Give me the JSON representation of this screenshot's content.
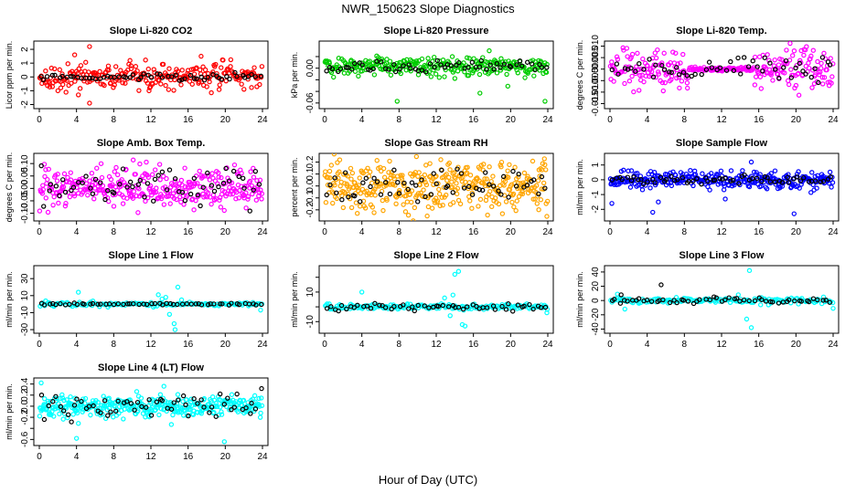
{
  "figure": {
    "title": "NWR_150623  Slope Diagnostics",
    "xlabel": "Hour of Day (UTC)"
  },
  "chart_data": [
    {
      "type": "scatter",
      "title": "Slope Li-820 CO2",
      "ylabel": "Licor ppm per min.",
      "xlim": [
        0,
        24
      ],
      "ylim": [
        -2.1,
        2.4
      ],
      "xticks": [
        0,
        4,
        8,
        12,
        16,
        20,
        24
      ],
      "xtick_labels": [
        "0",
        "4",
        "8",
        "12",
        "16",
        "20",
        "24"
      ],
      "yticks": [
        -2,
        -1,
        0,
        1,
        2
      ],
      "ytick_labels": [
        "-2",
        "-1",
        "0",
        "1",
        "2"
      ],
      "series": [
        {
          "color": "#ff0000",
          "marker": "open-circle",
          "trend": 0.02,
          "spread": 0.45,
          "points": 260,
          "outliers": [
            [
              5.4,
              2.2
            ],
            [
              5.4,
              -1.9
            ],
            [
              4.2,
              -1.3
            ],
            [
              3.8,
              1.6
            ],
            [
              17.4,
              1.5
            ],
            [
              11.8,
              -1.0
            ]
          ]
        },
        {
          "color": "#000000",
          "marker": "open-circle",
          "trend": 0.0,
          "spread": 0.12,
          "points": 60
        }
      ]
    },
    {
      "type": "scatter",
      "title": "Slope Li-820 Pressure",
      "ylabel": "kPa per min.",
      "xlim": [
        0,
        24
      ],
      "ylim": [
        -0.065,
        0.042
      ],
      "xticks": [
        0,
        4,
        8,
        12,
        16,
        20,
        24
      ],
      "xtick_labels": [
        "0",
        "4",
        "8",
        "12",
        "16",
        "20",
        "24"
      ],
      "yticks": [
        -0.06,
        -0.04,
        -0.02,
        0.0,
        0.02
      ],
      "ytick_labels": [
        "-0.06",
        "",
        "",
        "0.00",
        ""
      ],
      "series": [
        {
          "color": "#00cc00",
          "marker": "open-circle",
          "trend": 0.003,
          "spread": 0.008,
          "points": 280,
          "outliers": [
            [
              7.8,
              -0.057
            ],
            [
              16.7,
              -0.043
            ],
            [
              17.7,
              0.03
            ],
            [
              19.7,
              -0.031
            ],
            [
              23.7,
              -0.057
            ],
            [
              5.6,
              0.021
            ]
          ]
        },
        {
          "color": "#000000",
          "marker": "open-circle",
          "trend": 0.001,
          "spread": 0.005,
          "points": 60
        }
      ]
    },
    {
      "type": "scatter",
      "title": "Slope Li-820 Temp.",
      "ylabel": "degrees C per min.",
      "xlim": [
        0,
        24
      ],
      "ylim": [
        -0.016,
        0.011
      ],
      "xticks": [
        0,
        4,
        8,
        12,
        16,
        20,
        24
      ],
      "xtick_labels": [
        "0",
        "4",
        "8",
        "12",
        "16",
        "20",
        "24"
      ],
      "yticks": [
        -0.015,
        -0.01,
        -0.005,
        0.0,
        0.005,
        0.01
      ],
      "ytick_labels": [
        "-0.015",
        "-0.010",
        "-0.005",
        "0.000",
        "0.005",
        "0.010"
      ],
      "series": [
        {
          "color": "#ff00ff",
          "marker": "open-circle",
          "trend": 0.0,
          "spread": 0.0045,
          "points": 300,
          "quiet_range": [
            8.5,
            15.5
          ]
        },
        {
          "color": "#000000",
          "marker": "open-circle",
          "trend": 0.0,
          "spread": 0.0025,
          "points": 55
        }
      ]
    },
    {
      "type": "scatter",
      "title": "Slope Amb. Box Temp.",
      "ylabel": "degrees C per min.",
      "xlim": [
        0,
        24
      ],
      "ylim": [
        -0.12,
        0.13
      ],
      "xticks": [
        0,
        4,
        8,
        12,
        16,
        20,
        24
      ],
      "xtick_labels": [
        "0",
        "4",
        "8",
        "12",
        "16",
        "20",
        "24"
      ],
      "yticks": [
        -0.1,
        -0.05,
        0.0,
        0.05,
        0.1
      ],
      "ytick_labels": [
        "-0.10",
        "-0.05",
        "0.00",
        "0.05",
        "0.10"
      ],
      "series": [
        {
          "color": "#ff00ff",
          "marker": "open-circle",
          "trend": 0.005,
          "spread": 0.04,
          "points": 340
        },
        {
          "color": "#000000",
          "marker": "open-circle",
          "trend": 0.0,
          "spread": 0.04,
          "points": 60
        }
      ]
    },
    {
      "type": "scatter",
      "title": "Slope Gas Stream RH",
      "ylabel": "percent per min.",
      "xlim": [
        0,
        24
      ],
      "ylim": [
        -0.27,
        0.25
      ],
      "xticks": [
        0,
        4,
        8,
        12,
        16,
        20,
        24
      ],
      "xtick_labels": [
        "0",
        "4",
        "8",
        "12",
        "16",
        "20",
        "24"
      ],
      "yticks": [
        -0.2,
        -0.1,
        0.0,
        0.1,
        0.2
      ],
      "ytick_labels": [
        "-0.2",
        "-0.1",
        "0.0",
        "0.1",
        "0.2"
      ],
      "series": [
        {
          "color": "#ffa500",
          "marker": "open-circle",
          "trend": 0.0,
          "spread": 0.1,
          "points": 380
        },
        {
          "color": "#000000",
          "marker": "open-circle",
          "trend": 0.0,
          "spread": 0.07,
          "points": 60
        }
      ]
    },
    {
      "type": "scatter",
      "title": "Slope Sample Flow",
      "ylabel": "ml/min per min.",
      "xlim": [
        0,
        24
      ],
      "ylim": [
        -2.6,
        1.6
      ],
      "xticks": [
        0,
        4,
        8,
        12,
        16,
        20,
        24
      ],
      "xtick_labels": [
        "0",
        "4",
        "8",
        "12",
        "16",
        "20",
        "24"
      ],
      "yticks": [
        -2,
        -1,
        0,
        1
      ],
      "ytick_labels": [
        "-2",
        "-1",
        "0",
        "1"
      ],
      "series": [
        {
          "color": "#0000ff",
          "marker": "open-circle",
          "trend": 0.0,
          "spread": 0.28,
          "points": 320,
          "outliers": [
            [
              0.2,
              -1.6
            ],
            [
              4.6,
              -2.2
            ],
            [
              19.8,
              -2.3
            ],
            [
              15.2,
              1.2
            ],
            [
              5.2,
              -1.5
            ],
            [
              12.4,
              -1.3
            ]
          ]
        },
        {
          "color": "#000000",
          "marker": "open-circle",
          "trend": 0.0,
          "spread": 0.12,
          "points": 60
        }
      ]
    },
    {
      "type": "scatter",
      "title": "Slope Line 1 Flow",
      "ylabel": "ml/min per min.",
      "xlim": [
        0,
        24
      ],
      "ylim": [
        -31,
        42
      ],
      "xticks": [
        0,
        4,
        8,
        12,
        16,
        20,
        24
      ],
      "xtick_labels": [
        "0",
        "4",
        "8",
        "12",
        "16",
        "20",
        "24"
      ],
      "yticks": [
        -30,
        -10,
        10,
        30
      ],
      "ytick_labels": [
        "-30",
        "-10",
        "10",
        "30"
      ],
      "series": [
        {
          "color": "#00ffff",
          "marker": "open-circle",
          "trend": 0.0,
          "spread": 1.2,
          "points": 150,
          "outliers": [
            [
              4.2,
              14
            ],
            [
              12.8,
              11
            ],
            [
              13.6,
              8
            ],
            [
              14.0,
              -12
            ],
            [
              14.5,
              -23
            ],
            [
              14.6,
              -30
            ],
            [
              14.9,
              20
            ],
            [
              13.2,
              6
            ],
            [
              23.8,
              -7
            ],
            [
              15.3,
              5
            ]
          ]
        },
        {
          "color": "#000000",
          "marker": "open-circle",
          "trend": 0.0,
          "spread": 0.5,
          "points": 55
        }
      ]
    },
    {
      "type": "scatter",
      "title": "Slope Line 2 Flow",
      "ylabel": "ml/min per min.",
      "xlim": [
        0,
        24
      ],
      "ylim": [
        -16,
        26
      ],
      "xticks": [
        0,
        4,
        8,
        12,
        16,
        20,
        24
      ],
      "xtick_labels": [
        "0",
        "4",
        "8",
        "12",
        "16",
        "20",
        "24"
      ],
      "yticks": [
        -10,
        0,
        10,
        20
      ],
      "ytick_labels": [
        "-10",
        "",
        "10",
        ""
      ],
      "series": [
        {
          "color": "#00ffff",
          "marker": "open-circle",
          "trend": 0.0,
          "spread": 0.9,
          "points": 180,
          "outliers": [
            [
              4.0,
              10
            ],
            [
              14.0,
              22
            ],
            [
              14.4,
              24
            ],
            [
              13.5,
              -6
            ],
            [
              15.1,
              -13
            ],
            [
              14.8,
              -12
            ],
            [
              12.9,
              6
            ],
            [
              13.8,
              8
            ],
            [
              23.9,
              -4
            ]
          ]
        },
        {
          "color": "#000000",
          "marker": "open-circle",
          "trend": 0.0,
          "spread": 1.1,
          "points": 55
        }
      ]
    },
    {
      "type": "scatter",
      "title": "Slope Line 3 Flow",
      "ylabel": "ml/min per min.",
      "xlim": [
        0,
        24
      ],
      "ylim": [
        -42,
        45
      ],
      "xticks": [
        0,
        4,
        8,
        12,
        16,
        20,
        24
      ],
      "xtick_labels": [
        "0",
        "4",
        "8",
        "12",
        "16",
        "20",
        "24"
      ],
      "yticks": [
        -40,
        -20,
        0,
        20,
        40
      ],
      "ytick_labels": [
        "-40",
        "-20",
        "0",
        "20",
        "40"
      ],
      "series": [
        {
          "color": "#00ffff",
          "marker": "open-circle",
          "trend": 0.0,
          "spread": 2.0,
          "points": 170,
          "outliers": [
            [
              15.0,
              42
            ],
            [
              15.2,
              -38
            ],
            [
              14.7,
              -26
            ],
            [
              0.8,
              9
            ],
            [
              1.6,
              -12
            ],
            [
              24.0,
              -11
            ],
            [
              13.8,
              8
            ],
            [
              16.2,
              -6
            ]
          ]
        },
        {
          "color": "#000000",
          "marker": "open-circle",
          "trend": 0.0,
          "spread": 2.0,
          "points": 55,
          "outliers": [
            [
              5.5,
              22
            ],
            [
              1.2,
              8
            ]
          ]
        }
      ]
    },
    {
      "type": "scatter",
      "title": "Slope Line 4 (LT) Flow",
      "ylabel": "ml/min per min.",
      "xlim": [
        0,
        24
      ],
      "ylim": [
        -0.66,
        0.46
      ],
      "xticks": [
        0,
        4,
        8,
        12,
        16,
        20,
        24
      ],
      "xtick_labels": [
        "0",
        "4",
        "8",
        "12",
        "16",
        "20",
        "24"
      ],
      "yticks": [
        -0.6,
        -0.4,
        -0.2,
        0.0,
        0.2,
        0.4
      ],
      "ytick_labels": [
        "-0.6",
        "",
        "-0.2",
        "0.0",
        "0.2",
        "0.4"
      ],
      "series": [
        {
          "color": "#00ffff",
          "marker": "open-circle",
          "trend": 0.0,
          "spread": 0.1,
          "points": 360,
          "outliers": [
            [
              0.2,
              0.42
            ],
            [
              4.0,
              -0.58
            ],
            [
              19.9,
              -0.64
            ],
            [
              14.2,
              -0.33
            ],
            [
              13.4,
              0.36
            ],
            [
              4.2,
              -0.31
            ]
          ]
        },
        {
          "color": "#000000",
          "marker": "open-circle",
          "trend": 0.0,
          "spread": 0.12,
          "points": 60
        }
      ]
    }
  ]
}
